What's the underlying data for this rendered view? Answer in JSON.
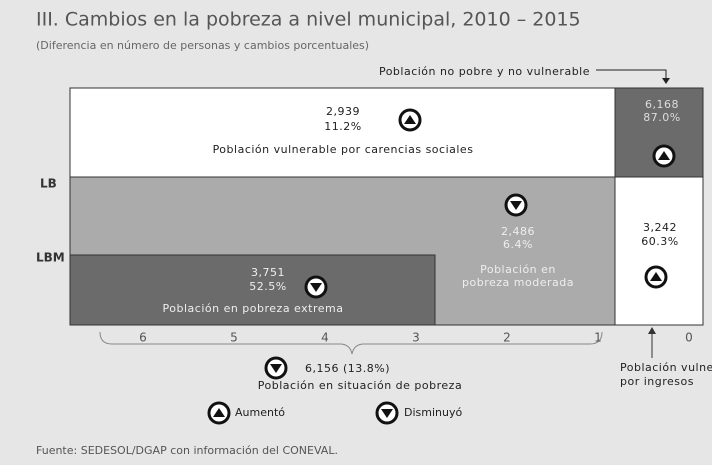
{
  "header": {
    "title": "III. Cambios en la pobreza a nivel municipal, 2010 – 2015",
    "subtitle": "(Diferencia en número de personas y cambios porcentuales)"
  },
  "top_label": "Población no pobre y no vulnerable",
  "y_labels": [
    "LB",
    "LBM"
  ],
  "regions": {
    "vulnerable_carencias": {
      "number": "2,939",
      "percent": "11.2%",
      "label": "Población vulnerable por carencias sociales"
    },
    "no_pobre": {
      "number": "6,168",
      "percent": "87.0%"
    },
    "pobreza_moderada": {
      "number": "2,486",
      "percent": "6.4%",
      "label": "Población en pobreza moderada"
    },
    "pobreza_extrema": {
      "number": "3,751",
      "percent": "52.5%",
      "label": "Población en pobreza extrema"
    },
    "vulnerable_ingresos": {
      "number": "3,242",
      "percent": "60.3%",
      "label": "Población vulnerable por ingresos"
    }
  },
  "x_labels": [
    6,
    5,
    4,
    3,
    2,
    1,
    0
  ],
  "pobreza_total": {
    "value": "6,156 (13.8%)",
    "label": "Población en situación de pobreza"
  },
  "legend": [
    "Aumentó",
    "Disminuyó"
  ],
  "source": "Fuente: SEDESOL/DGAP con información del CONEVAL."
}
